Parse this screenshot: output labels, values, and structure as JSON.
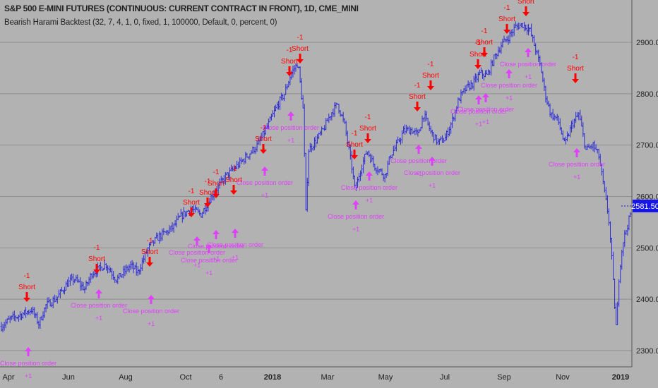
{
  "header": {
    "title": "S&P 500 E-MINI FUTURES (CONTINUOUS: CURRENT CONTRACT IN FRONT), 1D, CME_MINI",
    "study": "Bearish Harami Backtest (32, 7, 4, 1, 0, fixed, 1, 100000, Default, 0, percent, 0)"
  },
  "colors": {
    "background": "#b2b2b2",
    "grid": "#8f8f8f",
    "bar": "#2b2bd6",
    "short_signal": "#ff0000",
    "close_signal": "#e040fb",
    "price_badge": "#1515e6",
    "axis_text": "#222222"
  },
  "chart_data": {
    "type": "ohlc",
    "ylim": [
      2280,
      3000
    ],
    "y_ticks": [
      2300,
      2400,
      2500,
      2600,
      2700,
      2800,
      2900
    ],
    "y_tick_labels": [
      "2300.00",
      "2400.00",
      "2500.00",
      "2600.00",
      "2700.00",
      "2800.00",
      "2900.00"
    ],
    "x_labels": [
      "Apr",
      "Jun",
      "Aug",
      "Oct",
      "6",
      "2018",
      "Mar",
      "May",
      "Jul",
      "Sep",
      "Nov",
      "2019"
    ],
    "x_label_bold": [
      false,
      false,
      false,
      false,
      false,
      true,
      false,
      false,
      false,
      false,
      false,
      true
    ],
    "last_price": "2581.50",
    "last_value": 2581.5,
    "bar_count": 440,
    "price_path": [
      [
        0,
        2345
      ],
      [
        15,
        2362
      ],
      [
        30,
        2370
      ],
      [
        45,
        2380
      ],
      [
        55,
        2352
      ],
      [
        65,
        2388
      ],
      [
        80,
        2402
      ],
      [
        95,
        2430
      ],
      [
        105,
        2440
      ],
      [
        120,
        2420
      ],
      [
        130,
        2450
      ],
      [
        150,
        2468
      ],
      [
        165,
        2438
      ],
      [
        185,
        2466
      ],
      [
        195,
        2452
      ],
      [
        210,
        2500
      ],
      [
        225,
        2522
      ],
      [
        235,
        2530
      ],
      [
        245,
        2540
      ],
      [
        255,
        2560
      ],
      [
        270,
        2576
      ],
      [
        285,
        2565
      ],
      [
        300,
        2602
      ],
      [
        320,
        2640
      ],
      [
        340,
        2665
      ],
      [
        355,
        2686
      ],
      [
        365,
        2700
      ],
      [
        380,
        2740
      ],
      [
        393,
        2778
      ],
      [
        403,
        2800
      ],
      [
        412,
        2838
      ],
      [
        422,
        2860
      ],
      [
        430,
        2760
      ],
      [
        433,
        2560
      ],
      [
        437,
        2690
      ],
      [
        448,
        2710
      ],
      [
        458,
        2730
      ],
      [
        468,
        2760
      ],
      [
        478,
        2780
      ],
      [
        488,
        2740
      ],
      [
        498,
        2660
      ],
      [
        503,
        2610
      ],
      [
        510,
        2650
      ],
      [
        520,
        2690
      ],
      [
        530,
        2660
      ],
      [
        538,
        2650
      ],
      [
        545,
        2640
      ],
      [
        553,
        2680
      ],
      [
        562,
        2700
      ],
      [
        572,
        2728
      ],
      [
        582,
        2730
      ],
      [
        592,
        2720
      ],
      [
        600,
        2760
      ],
      [
        610,
        2726
      ],
      [
        620,
        2705
      ],
      [
        630,
        2712
      ],
      [
        640,
        2745
      ],
      [
        650,
        2790
      ],
      [
        660,
        2810
      ],
      [
        670,
        2820
      ],
      [
        680,
        2840
      ],
      [
        690,
        2835
      ],
      [
        700,
        2870
      ],
      [
        710,
        2895
      ],
      [
        720,
        2910
      ],
      [
        730,
        2930
      ],
      [
        740,
        2935
      ],
      [
        750,
        2925
      ],
      [
        760,
        2880
      ],
      [
        766,
        2850
      ],
      [
        772,
        2800
      ],
      [
        780,
        2760
      ],
      [
        790,
        2750
      ],
      [
        800,
        2700
      ],
      [
        810,
        2740
      ],
      [
        820,
        2760
      ],
      [
        830,
        2690
      ],
      [
        840,
        2700
      ],
      [
        848,
        2680
      ],
      [
        856,
        2610
      ],
      [
        862,
        2560
      ],
      [
        866,
        2490
      ],
      [
        870,
        2400
      ],
      [
        873,
        2340
      ],
      [
        877,
        2450
      ],
      [
        882,
        2510
      ],
      [
        888,
        2540
      ],
      [
        896,
        2580
      ]
    ],
    "short_signals": [
      {
        "label": "Short",
        "qty": "-1"
      },
      {
        "label": "Short",
        "qty": "-1"
      },
      {
        "label": "Short",
        "qty": "-1"
      },
      {
        "label": "Short",
        "qty": "-1"
      },
      {
        "label": "Short",
        "qty": "-1"
      },
      {
        "label": "Short",
        "qty": "-1"
      },
      {
        "label": "Short",
        "qty": "-1"
      },
      {
        "label": "Short",
        "qty": "-1"
      },
      {
        "label": "Short",
        "qty": "-1"
      },
      {
        "label": "Short",
        "qty": "-1"
      },
      {
        "label": "Short",
        "qty": "-1"
      },
      {
        "label": "Short",
        "qty": "-1"
      },
      {
        "label": "Short",
        "qty": "-1"
      },
      {
        "label": "Short",
        "qty": "-1"
      },
      {
        "label": "Short",
        "qty": "-1"
      },
      {
        "label": "Short",
        "qty": "-1"
      },
      {
        "label": "Short",
        "qty": "-1"
      },
      {
        "label": "Short",
        "qty": "-1"
      },
      {
        "label": "Short",
        "qty": "-1"
      },
      {
        "label": "Short",
        "qty": "-1"
      },
      {
        "label": "Short",
        "qty": "-1"
      },
      {
        "label": "Short",
        "qty": "-1"
      },
      {
        "label": "Short",
        "qty": "-1"
      },
      {
        "label": "Short",
        "qty": "-1"
      },
      {
        "label": "Short",
        "qty": "-1"
      }
    ],
    "close_signals": [
      {
        "label": "Close position order",
        "qty": "+1"
      },
      {
        "label": "Close position order",
        "qty": "+1"
      },
      {
        "label": "Close position order",
        "qty": "+1"
      },
      {
        "label": "Close position order",
        "qty": "+1"
      },
      {
        "label": "Close position order",
        "qty": "+1"
      },
      {
        "label": "Close position order",
        "qty": "+1"
      },
      {
        "label": "Close position order",
        "qty": "+1"
      },
      {
        "label": "Close position order",
        "qty": "+1"
      },
      {
        "label": "Close position order",
        "qty": "+1"
      },
      {
        "label": "Close position order",
        "qty": "+1"
      },
      {
        "label": "Close position order",
        "qty": "+1"
      },
      {
        "label": "Close position order",
        "qty": "+1"
      },
      {
        "label": "Close position order",
        "qty": "+1"
      },
      {
        "label": "Close position order",
        "qty": "+1"
      },
      {
        "label": "Close position order",
        "qty": "+1"
      },
      {
        "label": "Close position order",
        "qty": "+1"
      },
      {
        "label": "Close position order",
        "qty": "+1"
      },
      {
        "label": "Close position order",
        "qty": "+1"
      },
      {
        "label": "Close position order",
        "qty": "+1"
      },
      {
        "label": "Close position order",
        "qty": "+1"
      },
      {
        "label": "Close position order",
        "qty": "+1"
      }
    ]
  }
}
